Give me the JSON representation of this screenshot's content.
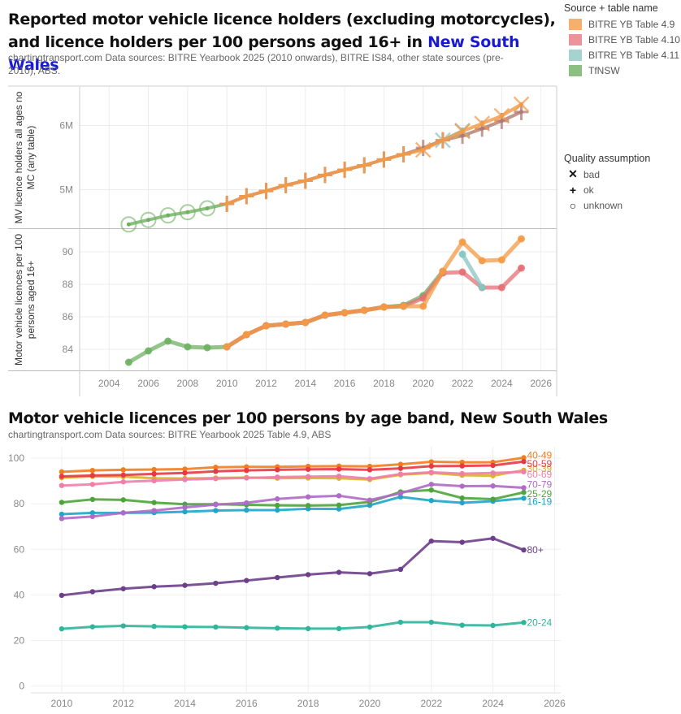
{
  "top": {
    "title_part1": "Reported motor vehicle licence holders (excluding motorcycles), and licence holders per 100 persons aged 16+ in ",
    "title_highlight": "New South Wales",
    "subtitle": "chartingtransport.com  Data sources: BITRE Yearbook 2025 (2010 onwards), BITRE IS84, other state sources (pre-2010), ABS."
  },
  "legend_source": {
    "title": "Source + table name",
    "items": [
      {
        "label": "BITRE YB Table 4.9",
        "color": "#f5b06f"
      },
      {
        "label": "BITRE YB Table 4.10",
        "color": "#ee9399"
      },
      {
        "label": "BITRE YB Table 4.11",
        "color": "#a6d3cf"
      },
      {
        "label": "TfNSW",
        "color": "#8cc083"
      }
    ]
  },
  "legend_quality": {
    "title": "Quality assumption",
    "items": [
      {
        "label": "bad",
        "symbol": "✕"
      },
      {
        "label": "ok",
        "symbol": "+"
      },
      {
        "label": "unknown",
        "symbol": "○"
      }
    ]
  },
  "bottom": {
    "title": "Motor vehicle licences per 100 persons by age band, New South Wales",
    "subtitle": "chartingtransport.com  Data sources: BITRE Yearbook 2025 Table 4.9, ABS"
  },
  "chart_data": [
    {
      "type": "line",
      "title": "Reported motor vehicle licence holders (excluding motorcycles)",
      "xlabel": "",
      "ylabel": "MV licence holders all ages no MC (any table)",
      "xlim": [
        2002.5,
        2026.8
      ],
      "ylim": [
        4.4,
        6.6
      ],
      "y_unit": "millions",
      "yticks": [
        "5M",
        "6M"
      ],
      "grid": true,
      "series": [
        {
          "name": "TfNSW",
          "color": "#6fb062",
          "quality": "unknown",
          "x": [
            2005,
            2006,
            2007,
            2008,
            2009,
            2010
          ],
          "y": [
            4.46,
            4.53,
            4.6,
            4.65,
            4.71,
            4.78
          ]
        },
        {
          "name": "BITRE YB Table 4.10",
          "color": "#b07a72",
          "quality": "ok",
          "x": [
            2010,
            2011,
            2012,
            2013,
            2014,
            2015,
            2016,
            2017,
            2018,
            2019,
            2020,
            2021,
            2022,
            2023,
            2024,
            2025
          ],
          "y": [
            4.78,
            4.9,
            4.98,
            5.07,
            5.14,
            5.23,
            5.31,
            5.38,
            5.47,
            5.55,
            5.65,
            5.77,
            5.84,
            5.95,
            6.07,
            6.21
          ]
        },
        {
          "name": "BITRE YB Table 4.11",
          "color": "#84c6c0",
          "quality": "bad",
          "x": [
            2021,
            2022
          ],
          "y": [
            5.77,
            5.92
          ]
        },
        {
          "name": "BITRE YB Table 4.9",
          "color": "#f39a45",
          "quality": "ok/bad",
          "x": [
            2010,
            2011,
            2012,
            2013,
            2014,
            2015,
            2016,
            2017,
            2018,
            2019,
            2020,
            2021,
            2022,
            2023,
            2024,
            2025
          ],
          "y": [
            4.78,
            4.9,
            4.98,
            5.07,
            5.14,
            5.23,
            5.31,
            5.38,
            5.47,
            5.55,
            5.62,
            5.77,
            5.91,
            6.03,
            6.15,
            6.33
          ]
        }
      ]
    },
    {
      "type": "line",
      "title": "Motor vehicle licences per 100 persons aged 16+",
      "xlabel": "",
      "ylabel": "Motor vehicle licences per 100 persons aged 16+",
      "xlim": [
        2002.5,
        2026.8
      ],
      "ylim": [
        82.7,
        91.4
      ],
      "yticks": [
        84,
        86,
        88,
        90
      ],
      "xticks": [
        2004,
        2006,
        2008,
        2010,
        2012,
        2014,
        2016,
        2018,
        2020,
        2022,
        2024,
        2026
      ],
      "grid": true,
      "series": [
        {
          "name": "TfNSW",
          "color": "#6fb062",
          "x": [
            2005,
            2006,
            2007,
            2008,
            2009,
            2010,
            2011,
            2012,
            2013,
            2014,
            2015,
            2016,
            2017,
            2018,
            2019,
            2020,
            2021
          ],
          "y": [
            83.2,
            83.9,
            84.5,
            84.15,
            84.1,
            84.15,
            84.9,
            85.45,
            85.55,
            85.65,
            86.1,
            86.25,
            86.4,
            86.6,
            86.7,
            87.3,
            88.8
          ]
        },
        {
          "name": "BITRE YB Table 4.10",
          "color": "#e56f74",
          "x": [
            2010,
            2011,
            2012,
            2013,
            2014,
            2015,
            2016,
            2017,
            2018,
            2019,
            2020,
            2021,
            2022,
            2023,
            2024,
            2025
          ],
          "y": [
            84.15,
            84.9,
            85.45,
            85.55,
            85.65,
            86.1,
            86.25,
            86.4,
            86.6,
            86.65,
            87.15,
            88.7,
            88.75,
            87.8,
            87.8,
            89.0
          ]
        },
        {
          "name": "BITRE YB Table 4.11",
          "color": "#84c6c0",
          "x": [
            2022,
            2023
          ],
          "y": [
            89.85,
            87.8
          ]
        },
        {
          "name": "BITRE YB Table 4.9",
          "color": "#f39a45",
          "x": [
            2010,
            2011,
            2012,
            2013,
            2014,
            2015,
            2016,
            2017,
            2018,
            2019,
            2020,
            2021,
            2022,
            2023,
            2024,
            2025
          ],
          "y": [
            84.15,
            84.9,
            85.45,
            85.55,
            85.65,
            86.1,
            86.25,
            86.4,
            86.6,
            86.65,
            86.65,
            88.8,
            90.6,
            89.45,
            89.5,
            90.8
          ]
        }
      ]
    },
    {
      "type": "line",
      "title": "Motor vehicle licences per 100 persons by age band, New South Wales",
      "xlabel": "",
      "ylabel": "",
      "xlim": [
        2009,
        2026.2
      ],
      "ylim": [
        -3,
        105
      ],
      "yticks": [
        0,
        20,
        40,
        60,
        80,
        100
      ],
      "xticks": [
        2010,
        2012,
        2014,
        2016,
        2018,
        2020,
        2022,
        2024,
        2026
      ],
      "grid": true,
      "x": [
        2010,
        2011,
        2012,
        2013,
        2014,
        2015,
        2016,
        2017,
        2018,
        2019,
        2020,
        2021,
        2022,
        2023,
        2024,
        2025
      ],
      "series": [
        {
          "name": "16-19",
          "color": "#1fa6c8",
          "values": [
            75.4,
            76.0,
            76.0,
            76.1,
            76.5,
            77.0,
            77.2,
            77.2,
            77.8,
            77.7,
            79.3,
            83.0,
            81.4,
            80.4,
            81.1,
            82.4
          ]
        },
        {
          "name": "20-24",
          "color": "#2fb59b",
          "values": [
            25.1,
            26.0,
            26.4,
            26.2,
            26.0,
            25.9,
            25.6,
            25.4,
            25.2,
            25.2,
            25.9,
            28.0,
            28.0,
            26.7,
            26.6,
            27.9
          ]
        },
        {
          "name": "25-29",
          "color": "#4ea43c",
          "values": [
            80.6,
            81.9,
            81.7,
            80.5,
            79.8,
            79.8,
            79.5,
            79.3,
            79.2,
            79.4,
            80.8,
            85.2,
            86.0,
            82.5,
            82.0,
            85.0
          ]
        },
        {
          "name": "30-39",
          "color": "#d9b42a",
          "values": [
            91.4,
            92.0,
            91.9,
            91.2,
            91.1,
            91.3,
            91.5,
            91.2,
            91.3,
            91.2,
            90.6,
            92.7,
            93.5,
            92.5,
            92.3,
            94.7
          ]
        },
        {
          "name": "40-49",
          "color": "#f27d1f",
          "values": [
            94.0,
            94.6,
            94.9,
            95.0,
            95.2,
            96.0,
            96.2,
            96.2,
            96.4,
            96.5,
            96.4,
            97.3,
            98.4,
            98.2,
            98.2,
            100.2
          ]
        },
        {
          "name": "50-59",
          "color": "#e63946",
          "values": [
            92.0,
            92.4,
            92.6,
            93.1,
            93.5,
            94.2,
            94.6,
            94.9,
            95.1,
            95.2,
            94.9,
            95.5,
            96.5,
            96.6,
            96.8,
            98.5
          ]
        },
        {
          "name": "60-69",
          "color": "#f17ea8",
          "values": [
            88.0,
            88.5,
            89.6,
            90.1,
            90.6,
            91.0,
            91.3,
            91.7,
            91.9,
            92.1,
            91.0,
            93.0,
            93.8,
            93.2,
            93.5,
            94.0
          ]
        },
        {
          "name": "70-79",
          "color": "#b06ac8",
          "values": [
            73.5,
            74.4,
            76.0,
            77.0,
            78.4,
            79.6,
            80.4,
            82.1,
            83.0,
            83.5,
            81.6,
            84.6,
            88.5,
            87.7,
            87.8,
            87.0
          ]
        },
        {
          "name": "80+",
          "color": "#6b3f89",
          "values": [
            39.8,
            41.4,
            42.7,
            43.6,
            44.2,
            45.1,
            46.3,
            47.6,
            48.9,
            49.9,
            49.3,
            51.2,
            63.6,
            63.1,
            64.8,
            59.7
          ]
        }
      ]
    }
  ]
}
